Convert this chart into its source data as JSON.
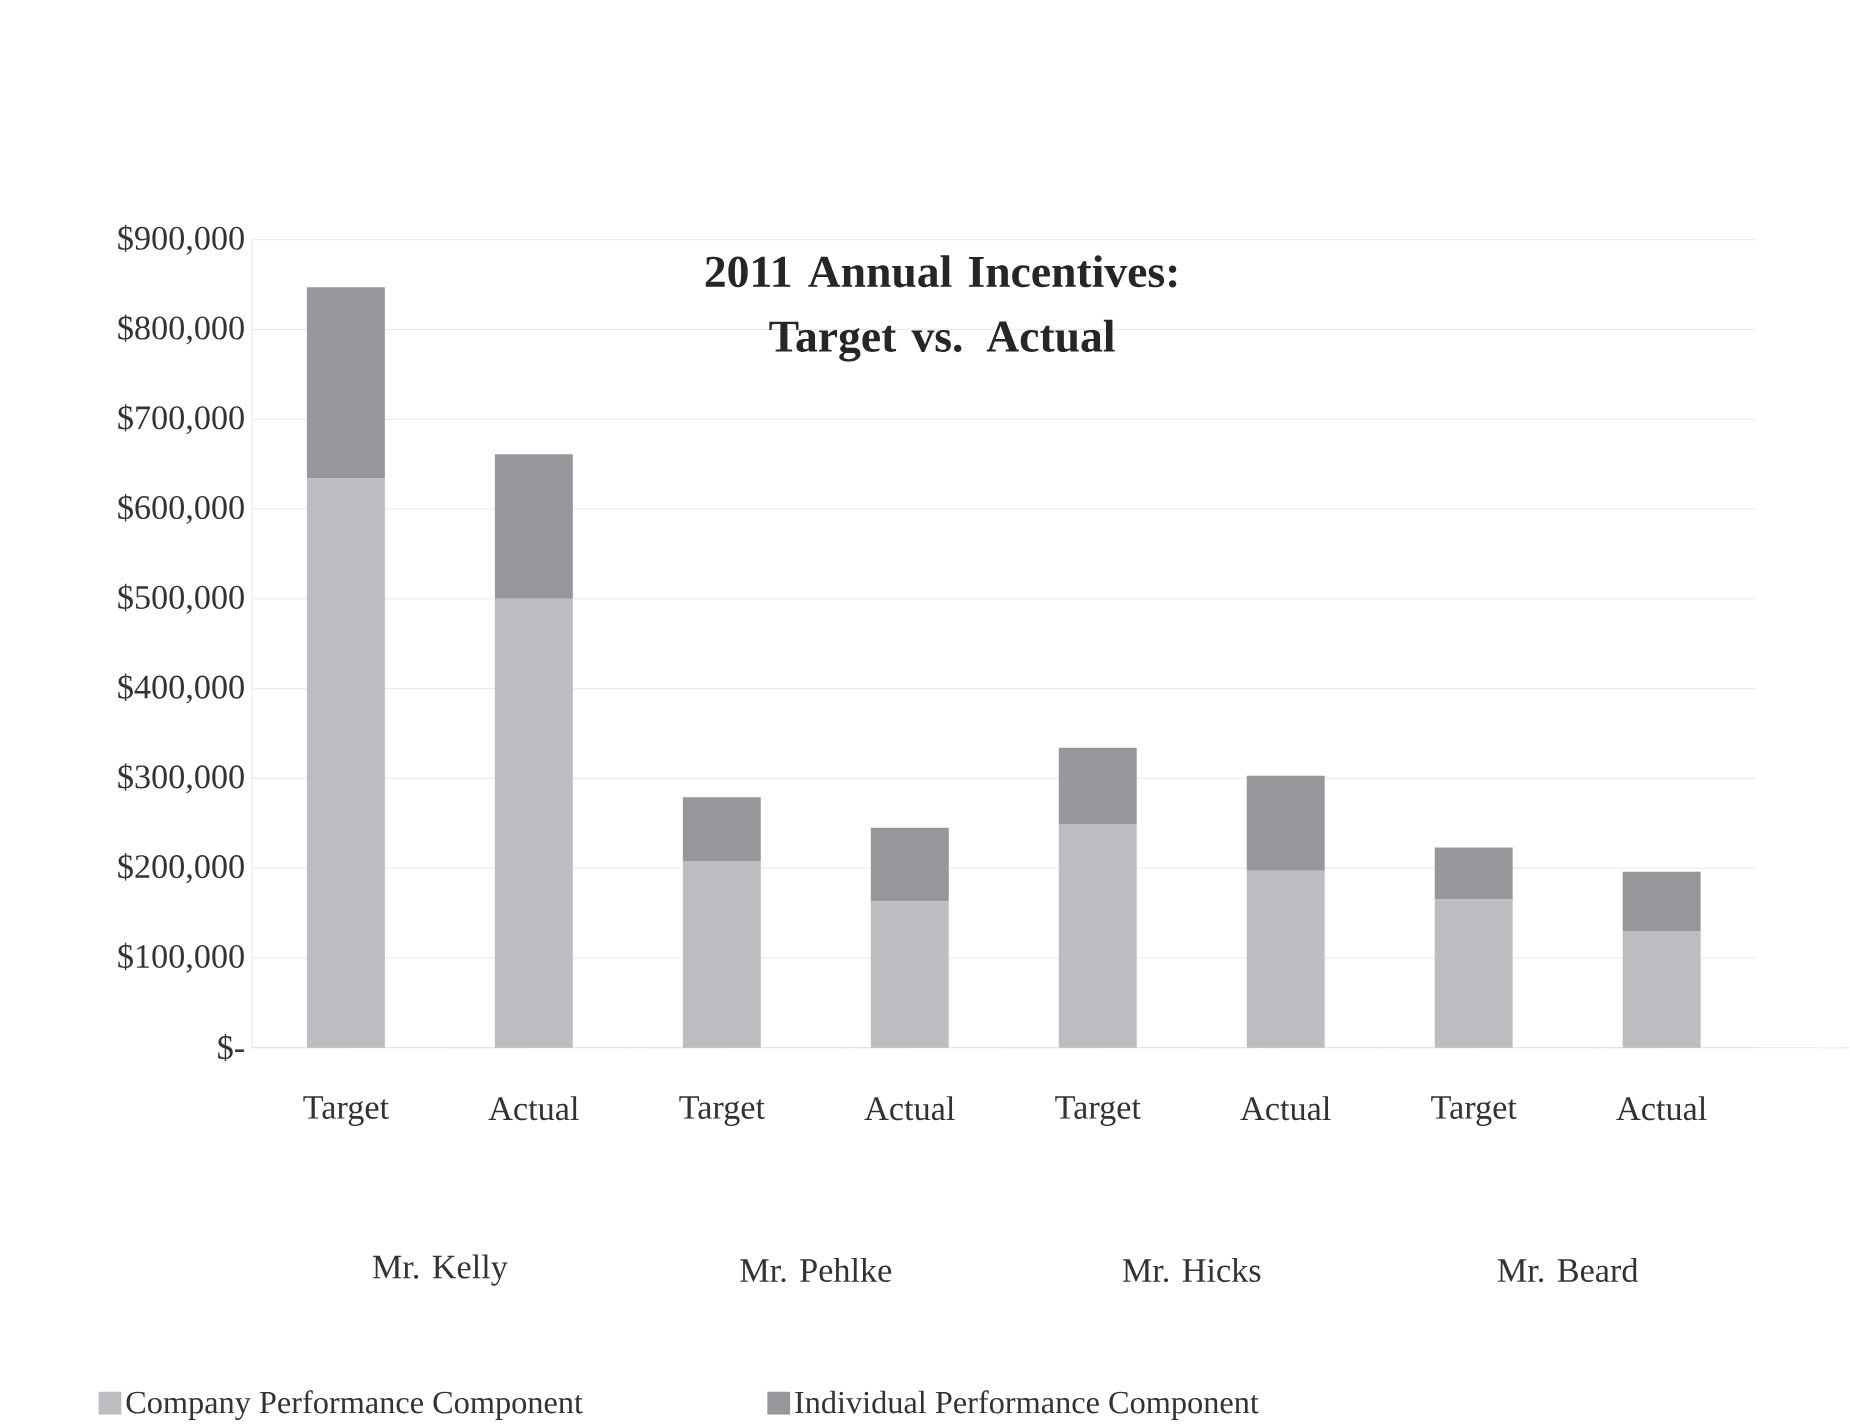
{
  "chart_data": {
    "type": "bar",
    "title": "2011 Annual Incentives: Target vs. Actual",
    "stacked": true,
    "categories": [
      "Target",
      "Actual",
      "Target",
      "Actual",
      "Target",
      "Actual",
      "Target",
      "Actual"
    ],
    "annotations": [
      "Mr. Kelly",
      "Mr. Pehlke",
      "Mr. Hicks",
      "Mr. Beard"
    ],
    "series": [
      {
        "name": "Company Performance Component",
        "color": "#bcbdc0",
        "values": [
          634000,
          500000,
          208000,
          163000,
          249000,
          197000,
          165000,
          130000
        ]
      },
      {
        "name": "Individual Performance Component",
        "color": "#96979b",
        "values": [
          213000,
          161000,
          71000,
          82000,
          85000,
          106000,
          58000,
          66000
        ]
      }
    ],
    "ylim": [
      0,
      900000
    ],
    "yticks": [
      {
        "value": 0,
        "label": "$-"
      },
      {
        "value": 100000,
        "label": "$100,000"
      },
      {
        "value": 200000,
        "label": "$200,000"
      },
      {
        "value": 300000,
        "label": "$300,000"
      },
      {
        "value": 400000,
        "label": "$400,000"
      },
      {
        "value": 500000,
        "label": "$500,000"
      },
      {
        "value": 600000,
        "label": "$600,000"
      },
      {
        "value": 700000,
        "label": "$700,000"
      },
      {
        "value": 800000,
        "label": "$800,000"
      },
      {
        "value": 900000,
        "label": "$900,000"
      }
    ],
    "grid": "y",
    "legend": "bottom"
  }
}
